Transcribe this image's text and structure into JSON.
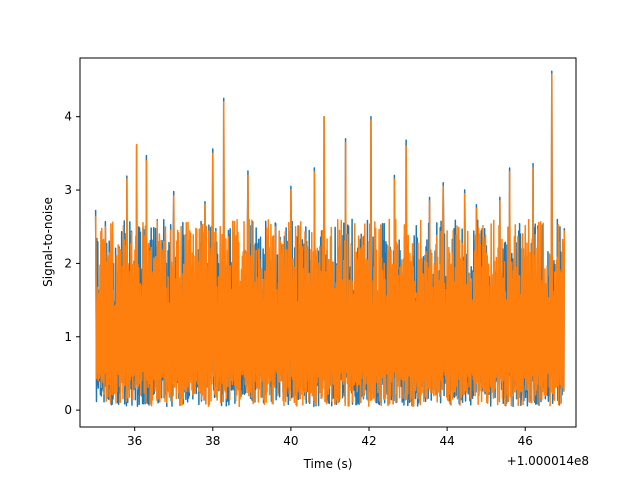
{
  "chart_data": {
    "type": "line",
    "xlabel": "Time (s)",
    "ylabel": "Signal-to-noise",
    "x_offset_label": "+1.000014e8",
    "xlim": [
      34.6,
      47.3
    ],
    "ylim": [
      -0.23,
      4.8
    ],
    "x_ticks": [
      "36",
      "38",
      "40",
      "42",
      "44",
      "46"
    ],
    "y_ticks": [
      "0",
      "1",
      "2",
      "3",
      "4"
    ],
    "grid": false,
    "legend": "none",
    "series": [
      {
        "color": "#1f77b4",
        "x": [
          35.0,
          35.1,
          35.25,
          35.5,
          35.8,
          36.05,
          36.3,
          36.6,
          37.0,
          37.4,
          37.8,
          38.0,
          38.28,
          38.5,
          38.9,
          39.3,
          39.6,
          40.0,
          40.35,
          40.6,
          40.85,
          41.1,
          41.4,
          41.7,
          42.05,
          42.4,
          42.65,
          42.95,
          43.2,
          43.55,
          43.9,
          44.2,
          44.45,
          44.75,
          45.05,
          45.35,
          45.6,
          45.9,
          46.2,
          46.55,
          46.68,
          46.9,
          47.0
        ],
        "y": [
          2.73,
          0.4,
          2.57,
          0.25,
          3.19,
          3.6,
          3.47,
          0.1,
          2.98,
          0.2,
          2.84,
          3.56,
          4.25,
          0.3,
          3.26,
          0.1,
          2.55,
          3.05,
          0.2,
          3.3,
          4.0,
          0.3,
          3.7,
          0.2,
          4.0,
          0.1,
          3.2,
          3.68,
          0.3,
          2.9,
          3.1,
          0.2,
          3.0,
          2.8,
          0.3,
          2.9,
          3.3,
          0.2,
          3.36,
          0.3,
          4.62,
          0.3,
          2.48
        ]
      },
      {
        "color": "#ff7f0e",
        "x": [
          35.0,
          35.1,
          35.25,
          35.5,
          35.8,
          36.05,
          36.3,
          36.6,
          37.0,
          37.4,
          37.8,
          38.0,
          38.28,
          38.5,
          38.9,
          39.3,
          39.6,
          40.0,
          40.35,
          40.6,
          40.85,
          41.1,
          41.4,
          41.7,
          42.05,
          42.4,
          42.65,
          42.95,
          43.2,
          43.55,
          43.9,
          44.2,
          44.45,
          44.75,
          45.05,
          45.35,
          45.6,
          45.9,
          46.2,
          46.55,
          46.68,
          46.9,
          47.0
        ],
        "y": [
          2.65,
          0.45,
          2.5,
          0.3,
          3.15,
          3.62,
          3.4,
          0.15,
          2.92,
          0.25,
          2.8,
          3.5,
          4.2,
          0.35,
          3.2,
          0.15,
          2.5,
          3.0,
          0.25,
          3.25,
          4.0,
          0.35,
          3.65,
          0.25,
          3.95,
          0.15,
          3.15,
          3.6,
          0.35,
          2.85,
          3.05,
          0.25,
          2.95,
          2.75,
          0.35,
          2.85,
          3.25,
          0.25,
          3.3,
          0.35,
          4.58,
          0.35,
          2.45
        ]
      }
    ]
  }
}
